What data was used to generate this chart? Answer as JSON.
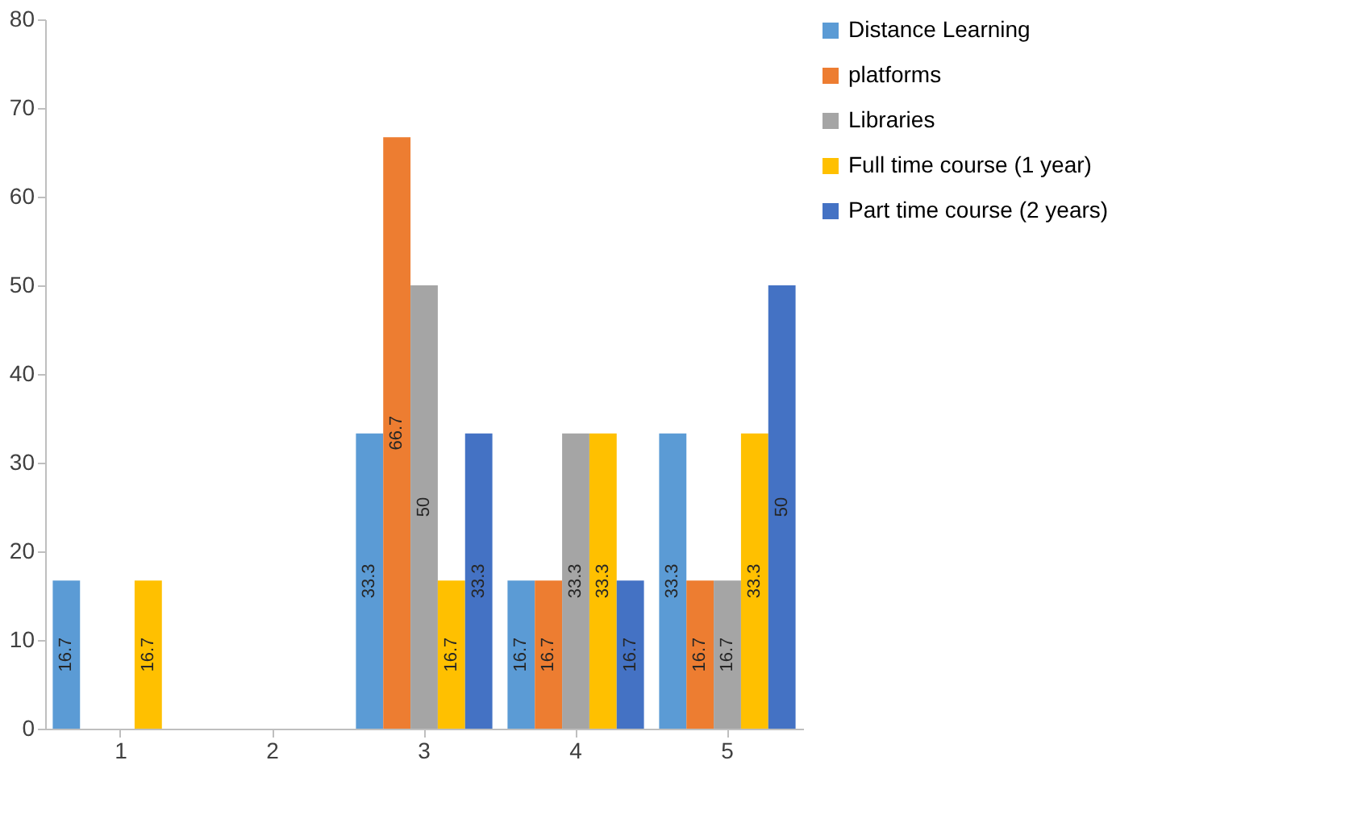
{
  "chart_data": {
    "type": "bar",
    "categories": [
      "1",
      "2",
      "3",
      "4",
      "5"
    ],
    "series": [
      {
        "name": "Distance Learning",
        "color": "#5b9bd5",
        "values": [
          16.7,
          0,
          33.3,
          16.7,
          33.3
        ],
        "value_labels": [
          "16.7",
          null,
          "33.3",
          "16.7",
          "33.3"
        ]
      },
      {
        "name": "platforms",
        "color": "#ed7d31",
        "values": [
          0,
          0,
          66.7,
          16.7,
          16.7
        ],
        "value_labels": [
          null,
          null,
          "66.7",
          "16.7",
          "16.7"
        ]
      },
      {
        "name": "Libraries",
        "color": "#a5a5a5",
        "values": [
          0,
          0,
          50,
          33.3,
          16.7
        ],
        "value_labels": [
          null,
          null,
          "50",
          "33.3",
          "16.7"
        ]
      },
      {
        "name": "Full time course (1 year)",
        "color": "#ffc000",
        "values": [
          16.7,
          0,
          16.7,
          33.3,
          33.3
        ],
        "value_labels": [
          "16.7",
          null,
          "16.7",
          "33.3",
          "33.3"
        ]
      },
      {
        "name": "Part time course (2 years)",
        "color": "#4472c4",
        "values": [
          0,
          0,
          33.3,
          16.7,
          50
        ],
        "value_labels": [
          null,
          null,
          "33.3",
          "16.7",
          "50"
        ]
      }
    ],
    "ylim": [
      0,
      80
    ],
    "yticks": [
      0,
      10,
      20,
      30,
      40,
      50,
      60,
      70,
      80
    ],
    "grid": false,
    "legend": "right"
  }
}
